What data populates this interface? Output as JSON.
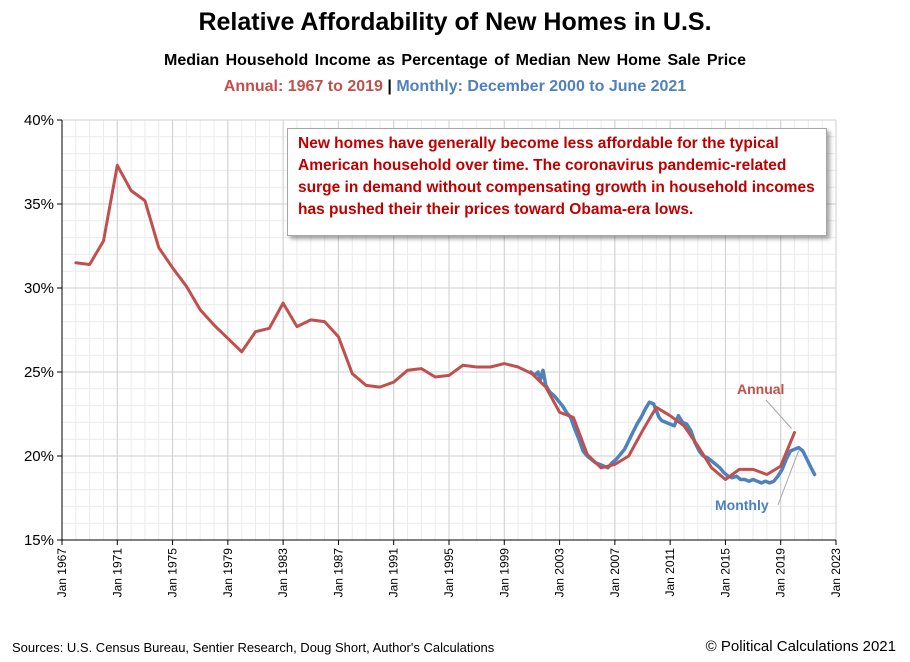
{
  "chart_data": {
    "type": "line",
    "title": "Relative Affordability of New Homes in U.S.",
    "subtitle": "Median Household Income as Percentage of Median New Home Sale Price",
    "range_annual": "Annual: 1967 to 2019",
    "range_separator": "|",
    "range_monthly": "Monthly: December 2000 to June 2021",
    "ylim": [
      15,
      40
    ],
    "y_ticks": [
      "15%",
      "20%",
      "25%",
      "30%",
      "35%",
      "40%"
    ],
    "xlim": [
      1967,
      2023
    ],
    "x_ticks": [
      "Jan 1967",
      "Jan 1971",
      "Jan 1975",
      "Jan 1979",
      "Jan 1983",
      "Jan 1987",
      "Jan 1991",
      "Jan 1995",
      "Jan 1999",
      "Jan 2003",
      "Jan 2007",
      "Jan 2011",
      "Jan 2015",
      "Jan 2019",
      "Jan 2023"
    ],
    "grid": true,
    "series": [
      {
        "name": "Annual",
        "color": "#c0504d",
        "x": [
          1968,
          1969,
          1970,
          1971,
          1972,
          1973,
          1974,
          1975,
          1976,
          1977,
          1978,
          1979,
          1980,
          1981,
          1982,
          1983,
          1984,
          1985,
          1986,
          1987,
          1988,
          1989,
          1990,
          1991,
          1992,
          1993,
          1994,
          1995,
          1996,
          1997,
          1998,
          1999,
          2000,
          2001,
          2002,
          2003,
          2004,
          2005,
          2006,
          2007,
          2008,
          2009,
          2010,
          2011,
          2012,
          2013,
          2014,
          2015,
          2016,
          2017,
          2018,
          2019,
          2020
        ],
        "values": [
          31.5,
          31.4,
          32.8,
          37.3,
          35.8,
          35.2,
          32.4,
          31.2,
          30.1,
          28.7,
          27.8,
          27.0,
          26.2,
          27.4,
          27.6,
          29.1,
          27.7,
          28.1,
          28.0,
          27.1,
          24.9,
          24.2,
          24.1,
          24.4,
          25.1,
          25.2,
          24.7,
          24.8,
          25.4,
          25.3,
          25.3,
          25.5,
          25.3,
          24.9,
          24.1,
          22.6,
          22.3,
          20.1,
          19.3,
          19.5,
          20.0,
          21.5,
          22.9,
          22.4,
          21.8,
          20.6,
          19.3,
          18.6,
          19.2,
          19.2,
          18.9,
          19.4,
          21.4
        ]
      },
      {
        "name": "Monthly",
        "color": "#4f81bd",
        "x": [
          2000.92,
          2001.2,
          2001.45,
          2001.6,
          2001.8,
          2002.0,
          2002.3,
          2002.6,
          2002.9,
          2003.2,
          2003.5,
          2003.8,
          2004.1,
          2004.4,
          2004.7,
          2005.0,
          2005.3,
          2005.6,
          2005.9,
          2006.2,
          2006.5,
          2006.8,
          2007.1,
          2007.4,
          2007.7,
          2008.0,
          2008.3,
          2008.6,
          2008.9,
          2009.2,
          2009.5,
          2009.8,
          2010.0,
          2010.2,
          2010.4,
          2010.7,
          2011.0,
          2011.3,
          2011.6,
          2011.9,
          2012.2,
          2012.5,
          2012.8,
          2013.1,
          2013.4,
          2013.7,
          2014.0,
          2014.3,
          2014.6,
          2014.9,
          2015.2,
          2015.5,
          2015.8,
          2016.1,
          2016.4,
          2016.7,
          2017.0,
          2017.3,
          2017.6,
          2017.9,
          2018.2,
          2018.5,
          2018.8,
          2019.1,
          2019.4,
          2019.7,
          2020.0,
          2020.3,
          2020.6,
          2020.9,
          2021.2,
          2021.45
        ],
        "values": [
          25.0,
          24.8,
          25.0,
          24.5,
          25.1,
          24.2,
          23.8,
          23.6,
          23.3,
          23.0,
          22.6,
          22.3,
          21.6,
          21.0,
          20.3,
          20.0,
          19.8,
          19.6,
          19.5,
          19.4,
          19.3,
          19.6,
          19.8,
          20.1,
          20.4,
          20.9,
          21.4,
          21.9,
          22.3,
          22.8,
          23.2,
          23.1,
          22.7,
          22.3,
          22.1,
          22.0,
          21.9,
          21.8,
          22.4,
          22.0,
          21.9,
          21.5,
          20.8,
          20.3,
          20.0,
          19.9,
          19.7,
          19.5,
          19.3,
          19.0,
          18.8,
          18.7,
          18.8,
          18.6,
          18.6,
          18.5,
          18.6,
          18.5,
          18.4,
          18.5,
          18.4,
          18.5,
          18.8,
          19.2,
          19.8,
          20.3,
          20.4,
          20.5,
          20.3,
          19.8,
          19.3,
          18.9
        ]
      }
    ],
    "series_labels": {
      "annual": "Annual",
      "monthly": "Monthly"
    },
    "annotation": "New homes have generally become less affordable for the typical American household over time.  The coronavirus pandemic-related surge in demand without compensating growth in household incomes has pushed their their prices toward Obama-era lows."
  },
  "footer": {
    "sources": "Sources: U.S. Census Bureau, Sentier Research, Doug Short, Author's Calculations",
    "copyright": "© Political Calculations 2021"
  }
}
